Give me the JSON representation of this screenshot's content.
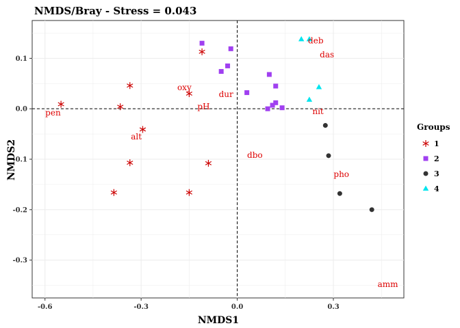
{
  "chart_data": {
    "type": "scatter",
    "title": "NMDS/Bray - Stress = 0.043",
    "xlabel": "NMDS1",
    "ylabel": "NMDS2",
    "xlim": [
      -0.64,
      0.52
    ],
    "ylim": [
      -0.375,
      0.175
    ],
    "xticks": [
      -0.6,
      -0.3,
      0.0,
      0.3
    ],
    "xtick_labels": [
      "-0.6",
      "-0.3",
      "0.0",
      "0.3"
    ],
    "yticks": [
      -0.3,
      -0.2,
      -0.1,
      0.0,
      0.1
    ],
    "ytick_labels": [
      "-0.3",
      "-0.2",
      "-0.1",
      "0.0",
      "0.1"
    ],
    "grid": true,
    "reference_lines": {
      "x": 0,
      "y": 0,
      "style": "dashed"
    },
    "legend": {
      "title": "Groups",
      "placement": "right"
    },
    "series": [
      {
        "name": "1",
        "marker": "asterisk",
        "color": "#cc0000",
        "points": [
          [
            -0.55,
            0.009
          ],
          [
            -0.335,
            0.046
          ],
          [
            -0.365,
            0.004
          ],
          [
            -0.295,
            -0.041
          ],
          [
            -0.335,
            -0.107
          ],
          [
            -0.385,
            -0.166
          ],
          [
            -0.15,
            0.03
          ],
          [
            -0.11,
            0.113
          ],
          [
            -0.09,
            -0.108
          ],
          [
            -0.15,
            -0.166
          ]
        ]
      },
      {
        "name": "2",
        "marker": "square",
        "color": "#a040f0",
        "points": [
          [
            -0.11,
            0.13
          ],
          [
            -0.02,
            0.119
          ],
          [
            -0.03,
            0.085
          ],
          [
            -0.05,
            0.074
          ],
          [
            0.03,
            0.032
          ],
          [
            0.1,
            0.068
          ],
          [
            0.12,
            0.045
          ],
          [
            0.11,
            0.007
          ],
          [
            0.12,
            0.012
          ],
          [
            0.095,
            0.0
          ],
          [
            0.14,
            0.002
          ]
        ]
      },
      {
        "name": "3",
        "marker": "circle",
        "color": "#333333",
        "points": [
          [
            0.275,
            -0.033
          ],
          [
            0.285,
            -0.093
          ],
          [
            0.32,
            -0.168
          ],
          [
            0.42,
            -0.2
          ]
        ]
      },
      {
        "name": "4",
        "marker": "triangle",
        "color": "#00e5ee",
        "points": [
          [
            0.2,
            0.138
          ],
          [
            0.225,
            0.138
          ],
          [
            0.255,
            0.043
          ],
          [
            0.225,
            0.018
          ]
        ]
      }
    ],
    "annotations": [
      {
        "text": "deb",
        "x": 0.245,
        "y": 0.135
      },
      {
        "text": "das",
        "x": 0.28,
        "y": 0.107
      },
      {
        "text": "oxy",
        "x": -0.165,
        "y": 0.042
      },
      {
        "text": "dur",
        "x": -0.035,
        "y": 0.029
      },
      {
        "text": "pH",
        "x": -0.105,
        "y": 0.004
      },
      {
        "text": "nit",
        "x": 0.252,
        "y": -0.005
      },
      {
        "text": "pen",
        "x": -0.575,
        "y": -0.008
      },
      {
        "text": "alt",
        "x": -0.315,
        "y": -0.055
      },
      {
        "text": "dbo",
        "x": 0.055,
        "y": -0.092
      },
      {
        "text": "pho",
        "x": 0.325,
        "y": -0.13
      },
      {
        "text": "amm",
        "x": 0.47,
        "y": -0.348
      }
    ]
  }
}
